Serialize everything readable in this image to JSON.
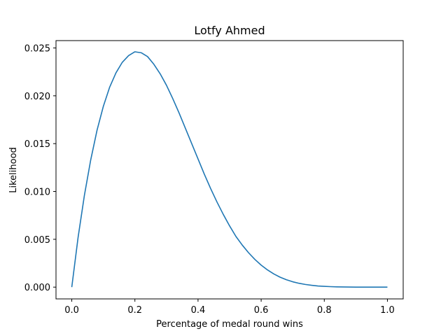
{
  "chart_data": {
    "type": "line",
    "title": "Lotfy Ahmed",
    "xlabel": "Percentage of medal round wins",
    "ylabel": "Likelihood",
    "xlim": [
      -0.05,
      1.05
    ],
    "ylim": [
      -0.00123,
      0.02577
    ],
    "x_ticks": [
      0.0,
      0.2,
      0.4,
      0.6,
      0.8,
      1.0
    ],
    "x_tick_labels": [
      "0.0",
      "0.2",
      "0.4",
      "0.6",
      "0.8",
      "1.0"
    ],
    "y_ticks": [
      0.0,
      0.005,
      0.01,
      0.015,
      0.02,
      0.025
    ],
    "y_tick_labels": [
      "0.000",
      "0.005",
      "0.010",
      "0.015",
      "0.020",
      "0.025"
    ],
    "grid": false,
    "series": [
      {
        "color": "#1f77b4",
        "x": [
          0.0,
          0.02,
          0.04,
          0.06,
          0.08,
          0.1,
          0.12,
          0.14,
          0.16,
          0.18,
          0.2,
          0.22,
          0.24,
          0.26,
          0.28,
          0.3,
          0.32,
          0.34,
          0.36,
          0.38,
          0.4,
          0.42,
          0.44,
          0.46,
          0.48,
          0.5,
          0.52,
          0.54,
          0.56,
          0.58,
          0.6,
          0.62,
          0.64,
          0.66,
          0.68,
          0.7,
          0.72,
          0.74,
          0.76,
          0.78,
          0.8,
          0.82,
          0.84,
          0.86,
          0.88,
          0.9,
          0.92,
          0.94,
          0.96,
          0.98,
          1.0
        ],
        "values": [
          0.0,
          0.0052,
          0.0096,
          0.0133,
          0.0164,
          0.0189,
          0.0209,
          0.0224,
          0.0235,
          0.0242,
          0.0246,
          0.0245,
          0.0241,
          0.0233,
          0.0223,
          0.0211,
          0.0197,
          0.0182,
          0.0166,
          0.015,
          0.0134,
          0.0118,
          0.0103,
          0.0089,
          0.0076,
          0.0064,
          0.0053,
          0.0044,
          0.0036,
          0.0029,
          0.0023,
          0.0018,
          0.00138,
          0.00104,
          0.00077,
          0.00056,
          0.0004,
          0.00028,
          0.00019,
          0.00012,
          8e-05,
          5e-05,
          3e-05,
          2e-05,
          1e-05,
          0.0,
          0.0,
          0.0,
          0.0,
          0.0,
          0.0
        ]
      }
    ]
  }
}
